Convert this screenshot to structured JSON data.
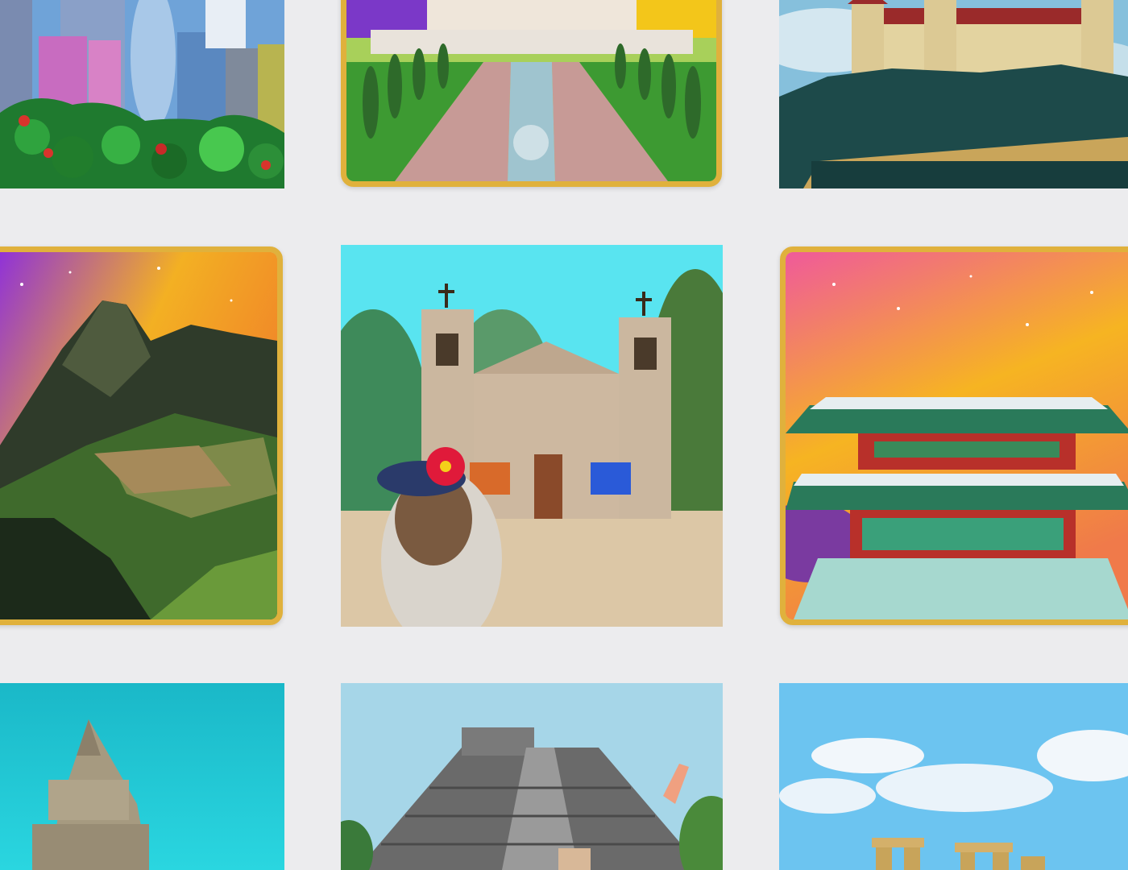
{
  "gallery": {
    "background_color": "#ececee",
    "frame_color": "#e0b13c",
    "tiles": [
      {
        "id": "skyline",
        "icon": "city-skyline-illustration",
        "framed": false
      },
      {
        "id": "taj-mahal",
        "icon": "taj-mahal-illustration",
        "framed": true
      },
      {
        "id": "castle",
        "icon": "hilltop-castle-illustration",
        "framed": false
      },
      {
        "id": "machu-picchu",
        "icon": "machu-picchu-illustration",
        "framed": true
      },
      {
        "id": "havana-cathedral",
        "icon": "cathedral-with-woman-illustration",
        "framed": false
      },
      {
        "id": "korean-palace",
        "icon": "korean-palace-illustration",
        "framed": true
      },
      {
        "id": "temple",
        "icon": "stone-temple-illustration",
        "framed": false
      },
      {
        "id": "chichen-itza",
        "icon": "mayan-pyramid-illustration",
        "framed": false
      },
      {
        "id": "stonehenge",
        "icon": "stonehenge-illustration",
        "framed": false
      }
    ]
  }
}
